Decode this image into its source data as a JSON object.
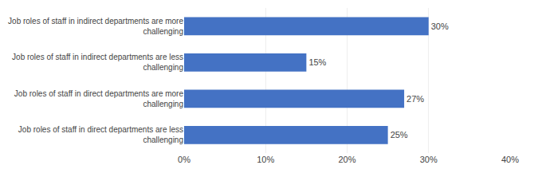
{
  "chart_data": {
    "type": "bar",
    "orientation": "horizontal",
    "categories": [
      "Job roles of staff in direct departments are less\nchallenging",
      "Job roles of staff in direct departments are more\nchallenging",
      "Job roles of staff in indirect departments are less\nchallenging",
      "Job roles of staff in indirect departments are more\nchallenging"
    ],
    "values": [
      25,
      27,
      15,
      30
    ],
    "value_labels": [
      "25%",
      "27%",
      "15%",
      "30%"
    ],
    "data_labels": true,
    "color": "#4472C4",
    "xlim": [
      0,
      40
    ],
    "xticks": [
      {
        "value": 0,
        "label": "0%"
      },
      {
        "value": 10,
        "label": "10%"
      },
      {
        "value": 20,
        "label": "20%"
      },
      {
        "value": 30,
        "label": "30%"
      },
      {
        "value": 40,
        "label": "40%"
      }
    ],
    "grid": true
  }
}
